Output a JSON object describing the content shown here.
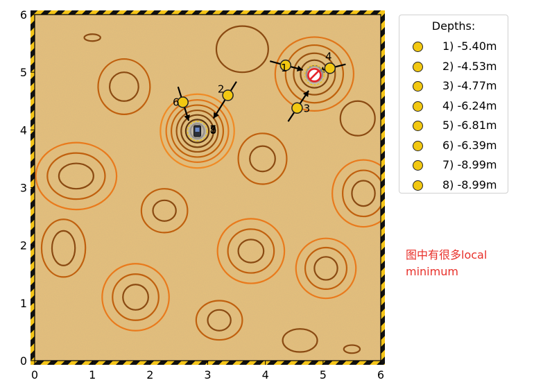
{
  "game": {
    "map": {
      "x_range": [
        0,
        6
      ],
      "y_range": [
        0,
        6
      ],
      "x_ticks": [
        "0",
        "1",
        "2",
        "3",
        "4",
        "5",
        "6"
      ],
      "y_ticks": [
        "0",
        "1",
        "2",
        "3",
        "4",
        "5",
        "6"
      ],
      "terrain_color": "#e6c07c",
      "border_colors": [
        "#f5c518",
        "#111111"
      ]
    },
    "contours": [
      {
        "cx": 2.82,
        "cy": 3.98,
        "levels": [
          [
            0.12,
            0.13
          ],
          [
            0.2,
            0.2
          ],
          [
            0.28,
            0.28
          ],
          [
            0.36,
            0.36
          ],
          [
            0.45,
            0.45
          ],
          [
            0.54,
            0.54
          ],
          [
            0.64,
            0.64
          ]
        ]
      },
      {
        "cx": 4.85,
        "cy": 4.97,
        "levels": [
          [
            0.14,
            0.14
          ],
          [
            0.24,
            0.24
          ],
          [
            0.36,
            0.36
          ],
          [
            0.5,
            0.5
          ],
          [
            0.68,
            0.64
          ]
        ]
      },
      {
        "cx": 0.72,
        "cy": 3.2,
        "levels": [
          [
            0.3,
            0.22
          ],
          [
            0.5,
            0.4
          ],
          [
            0.7,
            0.58
          ]
        ]
      },
      {
        "cx": 5.7,
        "cy": 2.9,
        "levels": [
          [
            0.2,
            0.22
          ],
          [
            0.36,
            0.4
          ],
          [
            0.54,
            0.58
          ]
        ]
      },
      {
        "cx": 1.75,
        "cy": 1.1,
        "levels": [
          [
            0.22,
            0.22
          ],
          [
            0.4,
            0.4
          ],
          [
            0.58,
            0.58
          ]
        ]
      },
      {
        "cx": 3.75,
        "cy": 1.9,
        "levels": [
          [
            0.22,
            0.2
          ],
          [
            0.4,
            0.38
          ],
          [
            0.58,
            0.56
          ]
        ]
      },
      {
        "cx": 5.05,
        "cy": 1.6,
        "levels": [
          [
            0.2,
            0.2
          ],
          [
            0.36,
            0.36
          ],
          [
            0.52,
            0.52
          ]
        ]
      },
      {
        "cx": 2.25,
        "cy": 2.6,
        "levels": [
          [
            0.2,
            0.18
          ],
          [
            0.4,
            0.38
          ]
        ]
      },
      {
        "cx": 3.95,
        "cy": 3.5,
        "levels": [
          [
            0.22,
            0.22
          ],
          [
            0.42,
            0.44
          ]
        ]
      },
      {
        "cx": 1.55,
        "cy": 4.75,
        "levels": [
          [
            0.25,
            0.25
          ],
          [
            0.45,
            0.48
          ]
        ]
      },
      {
        "cx": 3.2,
        "cy": 0.7,
        "levels": [
          [
            0.2,
            0.18
          ],
          [
            0.4,
            0.34
          ]
        ]
      },
      {
        "cx": 0.5,
        "cy": 1.95,
        "levels": [
          [
            0.2,
            0.3
          ],
          [
            0.38,
            0.5
          ]
        ]
      },
      {
        "cx": 1.0,
        "cy": 5.6,
        "levels": [
          [
            0.14,
            0.06
          ]
        ]
      },
      {
        "cx": 5.5,
        "cy": 0.2,
        "levels": [
          [
            0.14,
            0.07
          ]
        ]
      },
      {
        "cx": 4.6,
        "cy": 0.35,
        "levels": [
          [
            0.3,
            0.2
          ]
        ]
      },
      {
        "cx": 3.6,
        "cy": 5.4,
        "levels": [
          [
            0.45,
            0.4
          ]
        ]
      },
      {
        "cx": 5.6,
        "cy": 4.2,
        "levels": [
          [
            0.3,
            0.3
          ]
        ]
      }
    ],
    "markers": [
      {
        "label": "1",
        "depth": "-5.40m",
        "x": 4.35,
        "y": 5.12,
        "dx": 0.3,
        "dy": -0.08
      },
      {
        "label": "2",
        "depth": "-4.53m",
        "x": 3.35,
        "y": 4.6,
        "dx": -0.25,
        "dy": -0.4
      },
      {
        "label": "3",
        "depth": "-4.77m",
        "x": 4.55,
        "y": 4.38,
        "dx": 0.2,
        "dy": 0.3
      },
      {
        "label": "4",
        "depth": "-6.24m",
        "x": 5.12,
        "y": 5.07,
        "dx": -0.2,
        "dy": -0.05
      },
      {
        "label": "5",
        "depth": "-6.81m",
        "x": 2.86,
        "y": 4.0,
        "dx": 0.0,
        "dy": 0.0
      },
      {
        "label": "6",
        "depth": "-6.39m",
        "x": 2.57,
        "y": 4.48,
        "dx": 0.1,
        "dy": -0.32
      },
      {
        "label": "7",
        "depth": "-8.99m",
        "x": 2.84,
        "y": 3.99,
        "dx": 0.0,
        "dy": 0.0
      },
      {
        "label": "8",
        "depth": "-8.99m",
        "x": 2.83,
        "y": 3.98,
        "dx": 0.0,
        "dy": 0.0
      }
    ],
    "goal": {
      "x": 4.85,
      "y": 4.95
    },
    "agent": {
      "x": 2.82,
      "y": 3.98
    }
  },
  "legend": {
    "title": "Depths:"
  },
  "note": {
    "text": "图中有很多local minimum"
  }
}
